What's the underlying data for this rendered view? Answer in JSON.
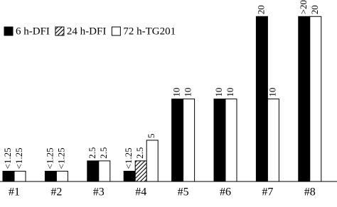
{
  "chart_data": {
    "type": "bar",
    "categories": [
      "#1",
      "#2",
      "#3",
      "#4",
      "#5",
      "#6",
      "#7",
      "#8"
    ],
    "series": [
      {
        "name": "6 h-DFI",
        "color": "#000000",
        "hatch": false,
        "values": [
          1.25,
          1.25,
          2.5,
          1.25,
          10,
          10,
          20,
          20
        ],
        "value_labels": [
          "<1.25",
          "<1.25",
          "2.5",
          "<1.25",
          "10",
          "10",
          "20",
          ">20"
        ]
      },
      {
        "name": "24 h-DFI",
        "color": "#000000",
        "hatch": true,
        "values": [
          null,
          null,
          null,
          2.5,
          null,
          null,
          null,
          null
        ],
        "value_labels": [
          null,
          null,
          null,
          "2.5",
          null,
          null,
          null,
          null
        ]
      },
      {
        "name": "72 h-TG201",
        "color": "#ffffff",
        "hatch": false,
        "values": [
          1.25,
          1.25,
          2.5,
          5,
          10,
          10,
          10,
          20
        ],
        "value_labels": [
          "<1.25",
          "<1.25",
          "2.5",
          "5",
          "10",
          "10",
          "10",
          "20"
        ]
      }
    ],
    "ylim": [
      0,
      22
    ],
    "legend": "top-left"
  }
}
